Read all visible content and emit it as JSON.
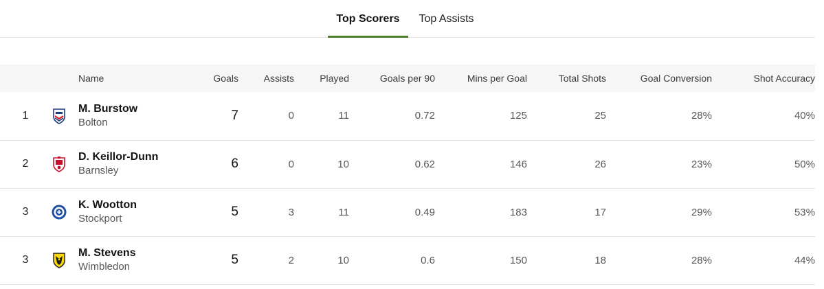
{
  "tabs": [
    {
      "label": "Top Scorers",
      "active": true
    },
    {
      "label": "Top Assists",
      "active": false
    }
  ],
  "accent_color": "#4c7d2b",
  "table": {
    "headers": {
      "name": "Name",
      "goals": "Goals",
      "assists": "Assists",
      "played": "Played",
      "goals_per_90": "Goals per 90",
      "mins_per_goal": "Mins per Goal",
      "total_shots": "Total Shots",
      "goal_conversion": "Goal Conversion",
      "shot_accuracy": "Shot Accuracy"
    },
    "rows": [
      {
        "rank": "1",
        "name": "M. Burstow",
        "team": "Bolton",
        "crest_icon": "bolton-crest-icon",
        "goals": "7",
        "assists": "0",
        "played": "11",
        "goals_per_90": "0.72",
        "mins_per_goal": "125",
        "total_shots": "25",
        "goal_conversion": "28%",
        "shot_accuracy": "40%"
      },
      {
        "rank": "2",
        "name": "D. Keillor-Dunn",
        "team": "Barnsley",
        "crest_icon": "barnsley-crest-icon",
        "goals": "6",
        "assists": "0",
        "played": "10",
        "goals_per_90": "0.62",
        "mins_per_goal": "146",
        "total_shots": "26",
        "goal_conversion": "23%",
        "shot_accuracy": "50%"
      },
      {
        "rank": "3",
        "name": "K. Wootton",
        "team": "Stockport",
        "crest_icon": "stockport-crest-icon",
        "goals": "5",
        "assists": "3",
        "played": "11",
        "goals_per_90": "0.49",
        "mins_per_goal": "183",
        "total_shots": "17",
        "goal_conversion": "29%",
        "shot_accuracy": "53%"
      },
      {
        "rank": "3",
        "name": "M. Stevens",
        "team": "Wimbledon",
        "crest_icon": "wimbledon-crest-icon",
        "goals": "5",
        "assists": "2",
        "played": "10",
        "goals_per_90": "0.6",
        "mins_per_goal": "150",
        "total_shots": "18",
        "goal_conversion": "28%",
        "shot_accuracy": "44%"
      }
    ]
  }
}
